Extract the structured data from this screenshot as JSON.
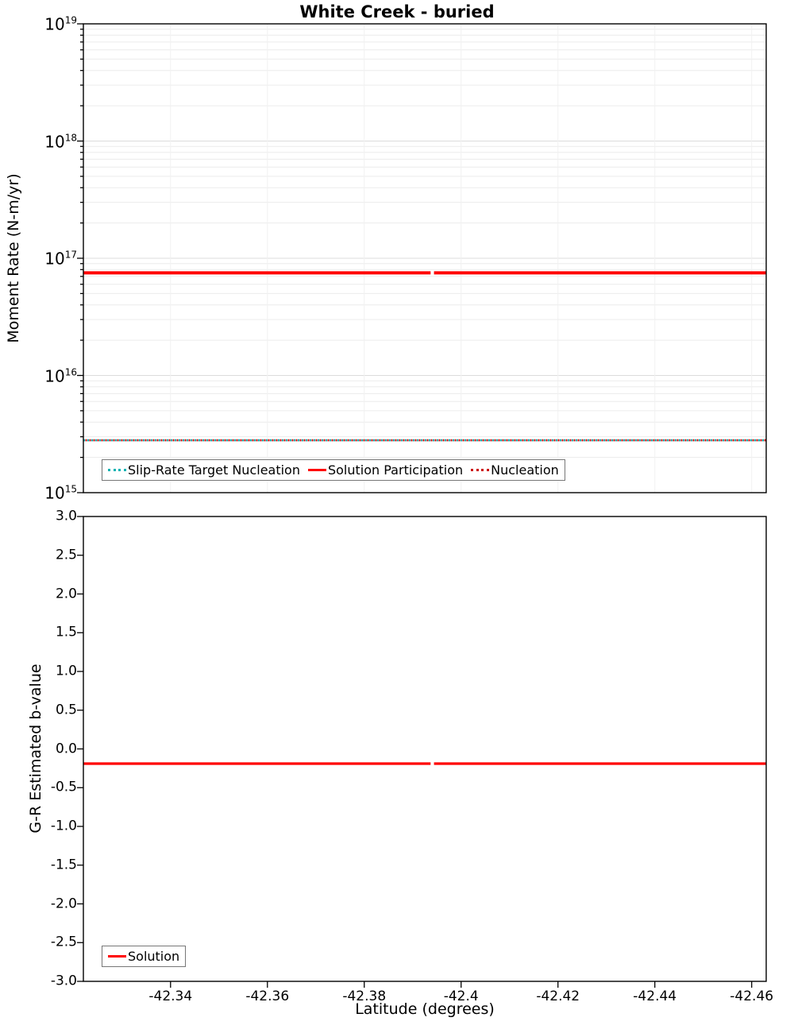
{
  "figure": {
    "background": "#ffffff",
    "frame_color": "#000000"
  },
  "chart_data": [
    {
      "type": "line",
      "title": "White Creek - buried",
      "ylabel": "Moment Rate (N-m/yr)",
      "yscale": "log",
      "ylim_log10": [
        15,
        19
      ],
      "ytick_base": "10",
      "ytick_exponents": [
        "19",
        "18",
        "17",
        "16",
        "15"
      ],
      "xlim": [
        -42.322,
        -42.463
      ],
      "x_reversed": true,
      "grid": true,
      "grid_minor_color": "#ececec",
      "grid_major_color": "#dcdcdc",
      "legend_position": "bottom-left",
      "series": [
        {
          "name": "Slip-Rate Target Nucleation",
          "color": "#00b2b2",
          "style": "dotted",
          "y": 2800000000000000.0,
          "x_segments": [
            [
              -42.322,
              -42.463
            ]
          ]
        },
        {
          "name": "Solution Participation",
          "color": "#ff0000",
          "style": "solid",
          "y": 7.5e+16,
          "x_segments": [
            [
              -42.322,
              -42.3937
            ],
            [
              -42.3944,
              -42.463
            ]
          ]
        },
        {
          "name": "Nucleation",
          "color": "#cc0000",
          "style": "dotted",
          "y": 2800000000000000.0,
          "x_segments": [
            [
              -42.322,
              -42.463
            ]
          ]
        }
      ]
    },
    {
      "type": "line",
      "ylabel": "G-R Estimated b-value",
      "xlabel": "Latitude (degrees)",
      "yscale": "linear",
      "ylim": [
        -3,
        3
      ],
      "yticks": [
        "3.0",
        "2.5",
        "2.0",
        "1.5",
        "1.0",
        "0.5",
        "0.0",
        "-0.5",
        "-1.0",
        "-1.5",
        "-2.0",
        "-2.5",
        "-3.0"
      ],
      "xticks": [
        "-42.34",
        "-42.36",
        "-42.38",
        "-42.4",
        "-42.42",
        "-42.44",
        "-42.46"
      ],
      "xlim": [
        -42.322,
        -42.463
      ],
      "x_reversed": true,
      "grid": false,
      "legend_position": "bottom-left",
      "series": [
        {
          "name": "Solution",
          "color": "#ff0000",
          "style": "solid",
          "y": -0.19,
          "x_segments": [
            [
              -42.322,
              -42.3937
            ],
            [
              -42.3944,
              -42.463
            ]
          ]
        }
      ]
    }
  ]
}
